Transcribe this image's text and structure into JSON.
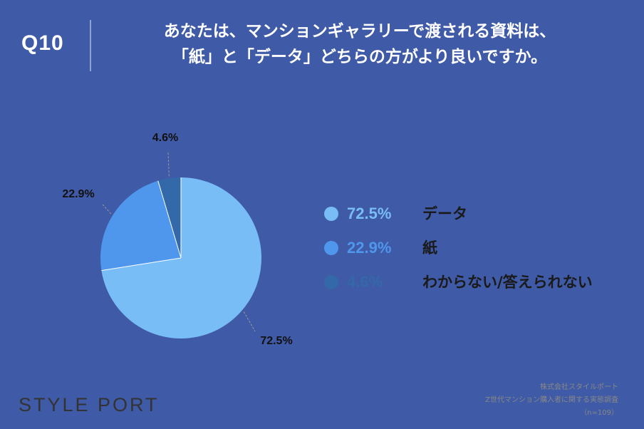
{
  "header": {
    "qnum": "Q10",
    "question_line1": "あなたは、マンションギャラリーで渡される資料は、",
    "question_line2": "「紙」と「データ」どちらの方がより良いですか。"
  },
  "chart_data": {
    "type": "pie",
    "slices": [
      {
        "label": "データ",
        "value": 72.5,
        "value_text": "72.5%",
        "color": "#78bdf6"
      },
      {
        "label": "紙",
        "value": 22.9,
        "value_text": "22.9%",
        "color": "#4f97ec"
      },
      {
        "label": "わからない/答えられない",
        "value": 4.6,
        "value_text": "4.6%",
        "color": "#3469a9"
      }
    ],
    "start": "12 o'clock",
    "direction": "clockwise"
  },
  "legend": {
    "items": [
      {
        "value": "72.5%",
        "label": "データ",
        "color": "#78bdf6"
      },
      {
        "value": "22.9%",
        "label": "紙",
        "color": "#4f97ec"
      },
      {
        "value": "4.6%",
        "label": "わからない/答えられない",
        "color": "#3469a9"
      }
    ]
  },
  "footer": {
    "logo": "STYLE PORT",
    "source_line1": "株式会社スタイルポート",
    "source_line2": "Z世代マンション購入者に関する実態調査",
    "source_line3": "（n=109）"
  }
}
